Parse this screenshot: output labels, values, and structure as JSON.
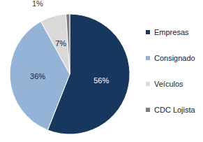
{
  "chart_data": {
    "type": "pie",
    "categories": [
      "Empresas",
      "Consignado",
      "Veículos",
      "CDC Lojista"
    ],
    "values": [
      56,
      36,
      7,
      1
    ],
    "value_labels": [
      "56%",
      "36%",
      "7%",
      "1%"
    ],
    "colors": [
      "#17375e",
      "#95b3d7",
      "#d9d9d9",
      "#7f7f7f"
    ],
    "data_labels": true,
    "legend": "right"
  }
}
